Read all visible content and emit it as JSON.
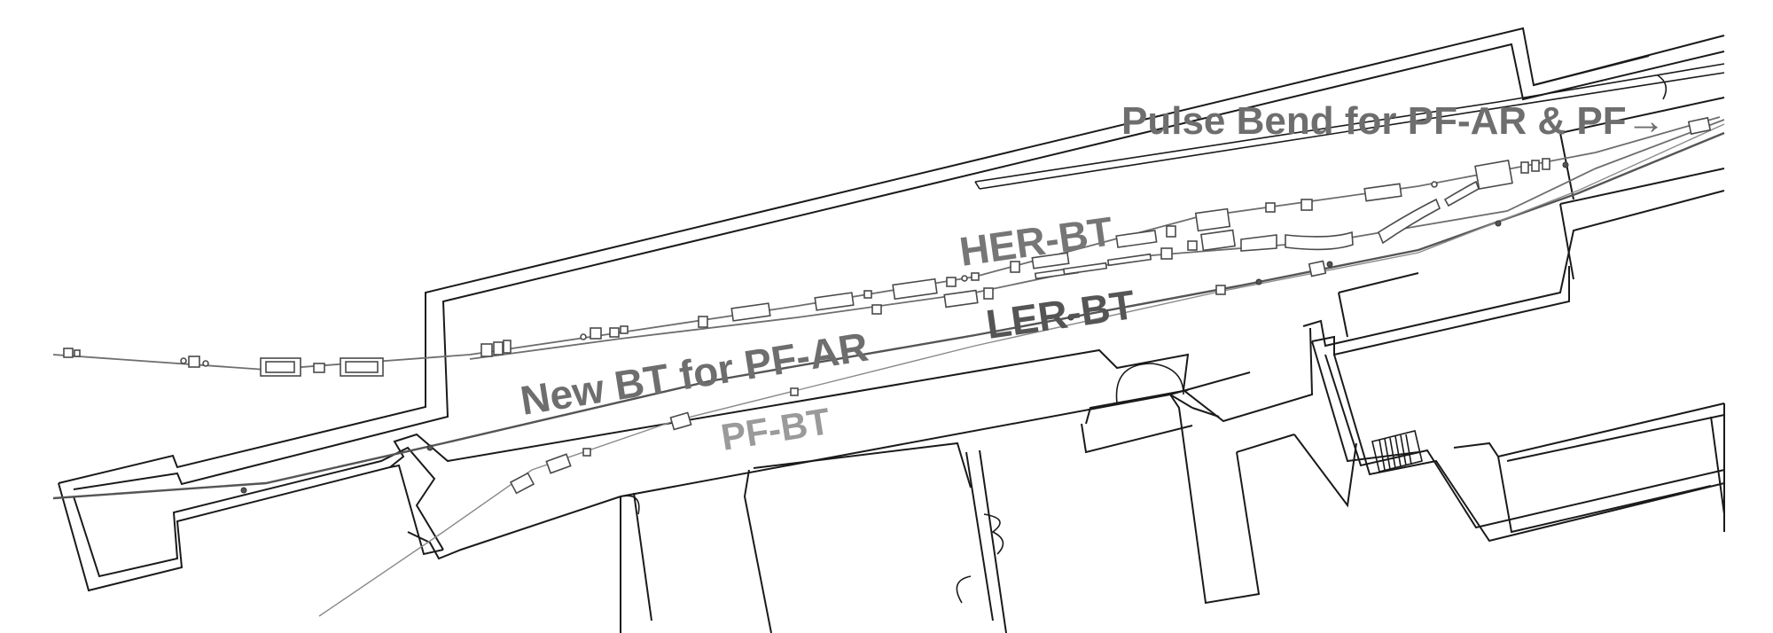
{
  "labels": {
    "her_bt": "HER-BT",
    "ler_bt": "LER-BT",
    "new_bt": "New BT for PF-AR",
    "pf_bt": "PF-BT",
    "pulse_bend": "Pulse Bend for PF-AR & PF→"
  },
  "colors": {
    "her_bt": "#767676",
    "ler_bt": "#555555",
    "new_bt": "#6e6e6e",
    "pf_bt": "#9a9a9a",
    "pulse_bend": "#6e6e6e",
    "walls": "#1a1a1a"
  }
}
